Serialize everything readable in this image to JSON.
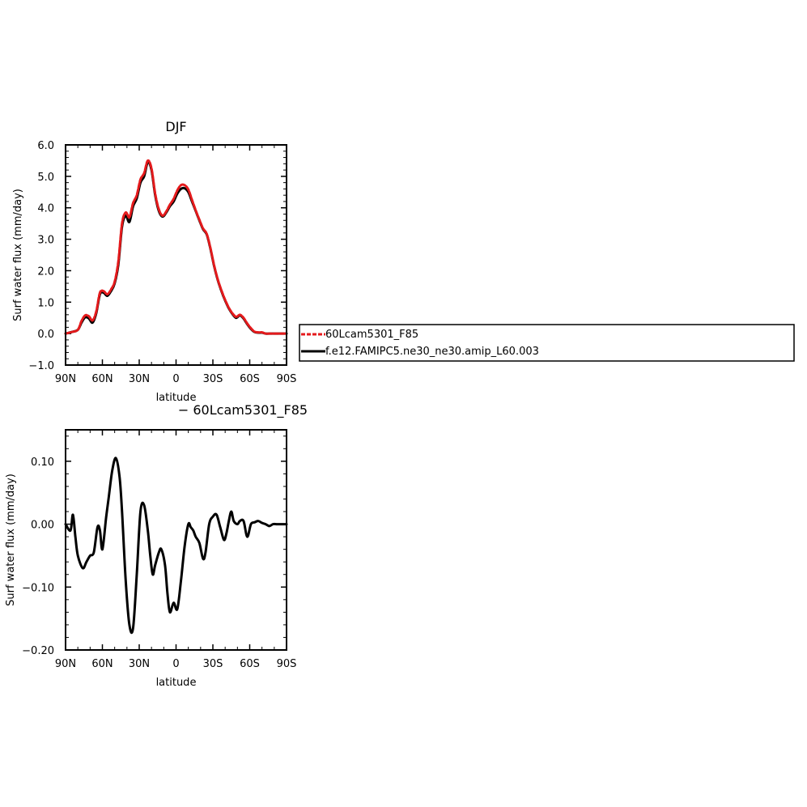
{
  "chart_data": [
    {
      "type": "line",
      "title": "DJF",
      "xlabel": "latitude",
      "ylabel": "Surf water flux (mm/day)",
      "xlim": [
        -90,
        90
      ],
      "ylim": [
        -1.0,
        6.0
      ],
      "x_ticks": [
        {
          "v": -90,
          "label": "90N"
        },
        {
          "v": -60,
          "label": "60N"
        },
        {
          "v": -30,
          "label": "30N"
        },
        {
          "v": 0,
          "label": "0"
        },
        {
          "v": 30,
          "label": "30S"
        },
        {
          "v": 60,
          "label": "60S"
        },
        {
          "v": 90,
          "label": "90S"
        }
      ],
      "y_ticks": [
        {
          "v": -1.0,
          "label": "−1.0"
        },
        {
          "v": 0.0,
          "label": "0.0"
        },
        {
          "v": 1.0,
          "label": "1.0"
        },
        {
          "v": 2.0,
          "label": "2.0"
        },
        {
          "v": 3.0,
          "label": "3.0"
        },
        {
          "v": 4.0,
          "label": "4.0"
        },
        {
          "v": 5.0,
          "label": "5.0"
        },
        {
          "v": 6.0,
          "label": "6.0"
        }
      ],
      "legend": "right",
      "series": [
        {
          "name": "f.e12.FAMIPC5.ne30_ne30.amip_L60.003",
          "color": "#000000",
          "dashed": false,
          "x": [
            -90,
            -85,
            -80,
            -77,
            -74,
            -71,
            -68,
            -65,
            -62,
            -59,
            -56,
            -53,
            -50,
            -47,
            -44,
            -41,
            -38,
            -35,
            -32,
            -29,
            -26,
            -23,
            -20,
            -17,
            -14,
            -11,
            -8,
            -5,
            -2,
            1,
            4,
            7,
            10,
            13,
            16,
            19,
            22,
            25,
            28,
            31,
            34,
            37,
            40,
            43,
            46,
            49,
            52,
            55,
            58,
            61,
            64,
            67,
            70,
            73,
            76,
            80,
            85,
            90
          ],
          "y": [
            0.0,
            0.05,
            0.12,
            0.35,
            0.52,
            0.48,
            0.35,
            0.65,
            1.25,
            1.3,
            1.2,
            1.35,
            1.6,
            2.2,
            3.4,
            3.75,
            3.55,
            4.05,
            4.3,
            4.8,
            5.0,
            5.45,
            5.2,
            4.4,
            3.9,
            3.72,
            3.85,
            4.05,
            4.2,
            4.45,
            4.6,
            4.62,
            4.5,
            4.2,
            3.9,
            3.6,
            3.32,
            3.15,
            2.7,
            2.15,
            1.7,
            1.35,
            1.05,
            0.8,
            0.62,
            0.5,
            0.58,
            0.48,
            0.3,
            0.15,
            0.05,
            0.03,
            0.03,
            0.0,
            0.0,
            0.0,
            0.0,
            0.0
          ]
        },
        {
          "name": "60Lcam5301_F85",
          "color": "#e41a1c",
          "dashed": true,
          "x": [
            -90,
            -85,
            -80,
            -77,
            -74,
            -71,
            -68,
            -65,
            -62,
            -59,
            -56,
            -53,
            -50,
            -47,
            -44,
            -41,
            -38,
            -35,
            -32,
            -29,
            -26,
            -23,
            -20,
            -17,
            -14,
            -11,
            -8,
            -5,
            -2,
            1,
            4,
            7,
            10,
            13,
            16,
            19,
            22,
            25,
            28,
            31,
            34,
            37,
            40,
            43,
            46,
            49,
            52,
            55,
            58,
            61,
            64,
            67,
            70,
            73,
            76,
            80,
            85,
            90
          ],
          "y": [
            0.0,
            0.05,
            0.12,
            0.4,
            0.58,
            0.55,
            0.42,
            0.7,
            1.3,
            1.35,
            1.25,
            1.4,
            1.65,
            2.3,
            3.5,
            3.85,
            3.7,
            4.15,
            4.4,
            4.9,
            5.1,
            5.5,
            5.25,
            4.45,
            3.95,
            3.75,
            3.88,
            4.1,
            4.28,
            4.55,
            4.72,
            4.72,
            4.58,
            4.25,
            3.92,
            3.62,
            3.34,
            3.17,
            2.72,
            2.17,
            1.72,
            1.37,
            1.07,
            0.82,
            0.64,
            0.53,
            0.6,
            0.5,
            0.32,
            0.17,
            0.06,
            0.04,
            0.04,
            0.0,
            0.0,
            0.0,
            0.0,
            0.0
          ]
        }
      ]
    },
    {
      "type": "line",
      "title": "− 60Lcam5301_F85",
      "xlabel": "latitude",
      "ylabel": "Surf water flux (mm/day)",
      "xlim": [
        -90,
        90
      ],
      "ylim": [
        -0.2,
        0.15
      ],
      "x_ticks": [
        {
          "v": -90,
          "label": "90N"
        },
        {
          "v": -60,
          "label": "60N"
        },
        {
          "v": -30,
          "label": "30N"
        },
        {
          "v": 0,
          "label": "0"
        },
        {
          "v": 30,
          "label": "30S"
        },
        {
          "v": 60,
          "label": "60S"
        },
        {
          "v": 90,
          "label": "90S"
        }
      ],
      "y_ticks": [
        {
          "v": -0.2,
          "label": "−0.20"
        },
        {
          "v": -0.1,
          "label": "−0.10"
        },
        {
          "v": 0.0,
          "label": "0.00"
        },
        {
          "v": 0.1,
          "label": "0.10"
        }
      ],
      "series": [
        {
          "name": "",
          "color": "#000000",
          "dashed": false,
          "x": [
            -90,
            -86,
            -84,
            -82,
            -80,
            -76,
            -73,
            -70,
            -67,
            -64,
            -62,
            -60,
            -57,
            -55,
            -52,
            -49,
            -46,
            -44,
            -41,
            -38,
            -35,
            -32,
            -29,
            -26,
            -23,
            -21,
            -19,
            -17,
            -14,
            -12,
            -9,
            -7,
            -5,
            -2,
            1,
            4,
            7,
            10,
            12,
            14,
            16,
            19,
            22,
            24,
            27,
            30,
            33,
            36,
            39,
            41,
            43,
            45,
            47,
            50,
            52,
            55,
            58,
            61,
            64,
            67,
            70,
            73,
            76,
            79,
            82,
            85,
            88,
            90
          ],
          "y": [
            0.0,
            -0.01,
            0.015,
            -0.02,
            -0.05,
            -0.07,
            -0.06,
            -0.05,
            -0.045,
            -0.005,
            -0.01,
            -0.04,
            0.01,
            0.04,
            0.085,
            0.105,
            0.075,
            0.02,
            -0.09,
            -0.16,
            -0.165,
            -0.08,
            0.02,
            0.03,
            -0.01,
            -0.05,
            -0.08,
            -0.065,
            -0.045,
            -0.04,
            -0.065,
            -0.11,
            -0.14,
            -0.125,
            -0.135,
            -0.09,
            -0.035,
            0.0,
            -0.005,
            -0.01,
            -0.02,
            -0.03,
            -0.055,
            -0.045,
            0.0,
            0.012,
            0.015,
            -0.005,
            -0.025,
            -0.015,
            0.005,
            0.02,
            0.005,
            0.0,
            0.005,
            0.005,
            -0.02,
            0.0,
            0.003,
            0.005,
            0.002,
            0.0,
            -0.003,
            0.0,
            0.0,
            0.0,
            0.0,
            0.0
          ]
        }
      ]
    }
  ]
}
